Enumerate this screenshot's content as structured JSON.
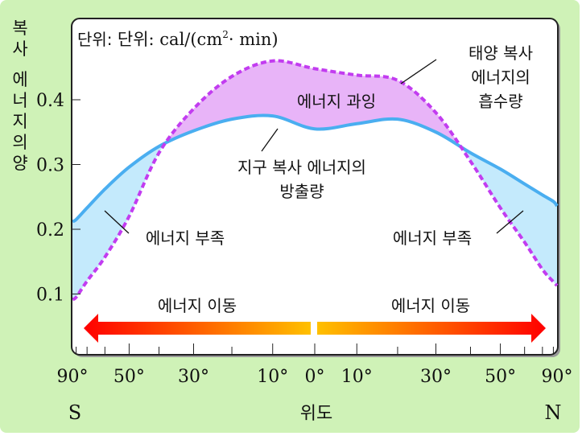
{
  "chart_data": {
    "type": "line",
    "unit_label": "단위: cal/(cm²·min)",
    "unit_prefix": "단위: cal/(cm",
    "unit_sup": "2",
    "unit_suffix": "· min)",
    "ylabel": "복사 에너지의 양",
    "ylabel_chars": [
      "복",
      "사",
      "에",
      "너",
      "지",
      "의",
      "양"
    ],
    "xlabel": "위도",
    "x_left_label": "S",
    "x_right_label": "N",
    "x_scale": "sine of latitude",
    "x_range": [
      -90,
      90
    ],
    "ylim": [
      0,
      0.52
    ],
    "y_ticks": [
      0.1,
      0.2,
      0.3,
      0.4
    ],
    "y_tick_labels": [
      "0.1",
      "0.2",
      "0.3",
      "0.4"
    ],
    "x_ticks": [
      -90,
      -80,
      -70,
      -60,
      -50,
      -40,
      -30,
      -20,
      -10,
      0,
      10,
      20,
      30,
      40,
      50,
      60,
      70,
      80,
      90
    ],
    "x_tick_labels": [
      {
        "lat": -90,
        "label": "90°"
      },
      {
        "lat": -50,
        "label": "50°"
      },
      {
        "lat": -30,
        "label": "30°"
      },
      {
        "lat": -10,
        "label": "10°"
      },
      {
        "lat": 0,
        "label": "0°"
      },
      {
        "lat": 10,
        "label": "10°"
      },
      {
        "lat": 30,
        "label": "30°"
      },
      {
        "lat": 50,
        "label": "50°"
      },
      {
        "lat": 90,
        "label": "90°"
      }
    ],
    "x": [
      -90,
      -80,
      -70,
      -60,
      -50,
      -40,
      -30,
      -20,
      -10,
      0,
      10,
      20,
      30,
      40,
      50,
      60,
      70,
      80,
      90
    ],
    "series": [
      {
        "name": "태양 복사 에너지의 흡수량",
        "style": "dashed",
        "color": "#c23cf0",
        "values": [
          0.092,
          0.095,
          0.12,
          0.157,
          0.22,
          0.318,
          0.386,
          0.436,
          0.46,
          0.448,
          0.438,
          0.43,
          0.38,
          0.305,
          0.233,
          0.18,
          0.138,
          0.119,
          0.113
        ]
      },
      {
        "name": "지구 복사 에너지의 방출량",
        "style": "solid",
        "color": "#4aaef0",
        "values": [
          0.212,
          0.215,
          0.233,
          0.262,
          0.296,
          0.328,
          0.352,
          0.37,
          0.375,
          0.355,
          0.363,
          0.37,
          0.35,
          0.318,
          0.293,
          0.27,
          0.253,
          0.243,
          0.236
        ]
      }
    ],
    "annotations": {
      "surplus": "에너지 과잉",
      "deficit_left": "에너지 부족",
      "deficit_right": "에너지 부족",
      "solar_line1": "태양 복사",
      "solar_line2": "에너지의",
      "solar_line3": "흡수량",
      "earth_line1": "지구 복사 에너지의",
      "earth_line2": "방출량",
      "transport_left": "에너지 이동",
      "transport_right": "에너지 이동"
    },
    "colors": {
      "background": "#cff2b7",
      "surplus_fill": "#e8b4f8",
      "deficit_fill": "#c4eafc",
      "arrow_outer": "#ff0000",
      "arrow_inner": "#ffc000"
    }
  }
}
